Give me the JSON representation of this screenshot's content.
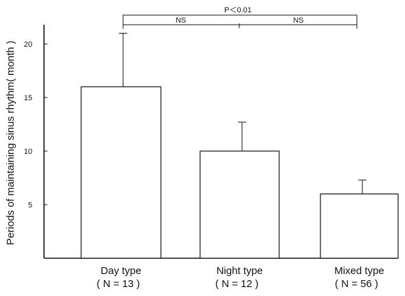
{
  "chart_data": {
    "type": "bar",
    "title": "",
    "ylabel": "Periods of maintaining sinus rhythm( month )",
    "xlabel": "",
    "ylim": [
      0,
      23
    ],
    "yticks": [
      5,
      10,
      15,
      20
    ],
    "categories": [
      "Day type",
      "Night type",
      "Mixed type"
    ],
    "group_sizes": [
      "( N = 13 )",
      "( N = 12 )",
      "( N = 56 )"
    ],
    "values": [
      16,
      10,
      6
    ],
    "error_upper": [
      21,
      12.7,
      7.3
    ],
    "comparisons": {
      "overall": "P＜0.01",
      "pairwise": [
        "NS",
        "NS"
      ]
    },
    "grid": false,
    "legend": "none"
  }
}
